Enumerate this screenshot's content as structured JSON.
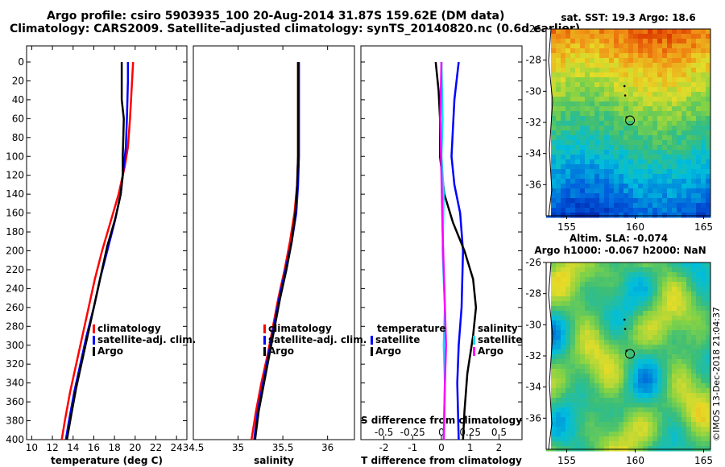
{
  "header": {
    "title_line1": "Argo profile: csiro 5903935_100 20-Aug-2014 31.87S 159.62E (DM data)",
    "title_line2": "Climatology: CARS2009. Satellite-adjusted climatology: synTS_20140820.nc (0.6d earlier)"
  },
  "footer": {
    "stamp": "©IMOS 13-Dec-2018 21:04:37"
  },
  "colors": {
    "climatology": "#ff0000",
    "satellite": "#0000ff",
    "argo": "#000000",
    "satellite_s": "#00e0ff",
    "argo_s": "#ff00ff"
  },
  "chart_data": [
    {
      "id": "temperature",
      "type": "line",
      "xlabel": "temperature (deg C)",
      "ylabel": "",
      "xlim": [
        9.5,
        25
      ],
      "ylim": [
        400,
        0
      ],
      "xticks": [
        10,
        12,
        14,
        16,
        18,
        20,
        22,
        24
      ],
      "yticks": [
        0,
        20,
        40,
        60,
        80,
        100,
        120,
        140,
        160,
        180,
        200,
        220,
        240,
        260,
        280,
        300,
        320,
        340,
        360,
        380,
        400
      ],
      "legend": [
        "climatology",
        "satellite-adj. clim.",
        "Argo"
      ],
      "legend_pos": "lower-right",
      "series": [
        {
          "name": "climatology",
          "color": "#ff0000",
          "points": [
            [
              19.8,
              0
            ],
            [
              19.7,
              20
            ],
            [
              19.5,
              60
            ],
            [
              19.3,
              90
            ],
            [
              19.0,
              110
            ],
            [
              18.4,
              140
            ],
            [
              17.6,
              170
            ],
            [
              16.8,
              200
            ],
            [
              16.1,
              230
            ],
            [
              15.5,
              260
            ],
            [
              14.9,
              290
            ],
            [
              14.3,
              320
            ],
            [
              13.7,
              350
            ],
            [
              13.2,
              380
            ],
            [
              12.9,
              400
            ]
          ]
        },
        {
          "name": "satellite-adj. clim.",
          "color": "#0000ff",
          "points": [
            [
              19.3,
              0
            ],
            [
              19.3,
              20
            ],
            [
              19.2,
              60
            ],
            [
              19.1,
              90
            ],
            [
              18.9,
              110
            ],
            [
              18.6,
              140
            ],
            [
              18.0,
              170
            ],
            [
              17.3,
              200
            ],
            [
              16.6,
              230
            ],
            [
              16.0,
              260
            ],
            [
              15.3,
              290
            ],
            [
              14.7,
              320
            ],
            [
              14.1,
              350
            ],
            [
              13.6,
              380
            ],
            [
              13.3,
              400
            ]
          ]
        },
        {
          "name": "Argo",
          "color": "#000000",
          "points": [
            [
              18.7,
              0
            ],
            [
              18.7,
              40
            ],
            [
              18.9,
              60
            ],
            [
              18.8,
              100
            ],
            [
              18.8,
              120
            ],
            [
              18.6,
              140
            ],
            [
              18.1,
              165
            ],
            [
              17.3,
              195
            ],
            [
              16.7,
              225
            ],
            [
              16.1,
              255
            ],
            [
              15.5,
              285
            ],
            [
              14.9,
              315
            ],
            [
              14.3,
              345
            ],
            [
              13.8,
              375
            ],
            [
              13.4,
              400
            ]
          ]
        }
      ]
    },
    {
      "id": "salinity",
      "type": "line",
      "xlabel": "salinity",
      "ylabel": "",
      "xlim": [
        34.5,
        36.3
      ],
      "ylim": [
        400,
        0
      ],
      "xticks": [
        34.5,
        35,
        35.5,
        36
      ],
      "xtick_labels": [
        "34.5",
        "35",
        "35.5",
        "36"
      ],
      "legend": [
        "climatology",
        "satellite-adj. clim.",
        "Argo"
      ],
      "legend_pos": "lower-right",
      "series": [
        {
          "name": "climatology",
          "color": "#ff0000",
          "points": [
            [
              35.67,
              0
            ],
            [
              35.67,
              60
            ],
            [
              35.67,
              100
            ],
            [
              35.66,
              130
            ],
            [
              35.63,
              160
            ],
            [
              35.58,
              190
            ],
            [
              35.52,
              220
            ],
            [
              35.45,
              250
            ],
            [
              35.39,
              280
            ],
            [
              35.33,
              310
            ],
            [
              35.26,
              340
            ],
            [
              35.2,
              370
            ],
            [
              35.15,
              400
            ]
          ]
        },
        {
          "name": "satellite-adj. clim.",
          "color": "#0000ff",
          "points": [
            [
              35.68,
              0
            ],
            [
              35.68,
              60
            ],
            [
              35.68,
              100
            ],
            [
              35.67,
              130
            ],
            [
              35.65,
              160
            ],
            [
              35.6,
              190
            ],
            [
              35.53,
              220
            ],
            [
              35.46,
              250
            ],
            [
              35.4,
              280
            ],
            [
              35.34,
              310
            ],
            [
              35.28,
              340
            ],
            [
              35.22,
              370
            ],
            [
              35.18,
              400
            ]
          ]
        },
        {
          "name": "Argo",
          "color": "#000000",
          "points": [
            [
              35.67,
              0
            ],
            [
              35.67,
              40
            ],
            [
              35.67,
              80
            ],
            [
              35.67,
              100
            ],
            [
              35.66,
              130
            ],
            [
              35.64,
              160
            ],
            [
              35.6,
              190
            ],
            [
              35.54,
              220
            ],
            [
              35.47,
              250
            ],
            [
              35.41,
              280
            ],
            [
              35.35,
              310
            ],
            [
              35.29,
              340
            ],
            [
              35.23,
              370
            ],
            [
              35.19,
              400
            ]
          ]
        }
      ]
    },
    {
      "id": "differences",
      "type": "line",
      "xlabel": "T difference from climatology",
      "x2label": "S difference from climatology",
      "xlim": [
        -2.8,
        2.8
      ],
      "ylim": [
        400,
        0
      ],
      "xticks": [
        -2,
        -1,
        0,
        1,
        2
      ],
      "xtick_labels": [
        "-2",
        "-1",
        "0",
        "1",
        "2"
      ],
      "x2ticks": [
        -0.5,
        -0.25,
        0,
        0.25,
        0.5
      ],
      "x2tick_labels": [
        "-0.5",
        "-0.25",
        "0",
        "0.25",
        "0.5"
      ],
      "x2lim": [
        -0.7,
        0.7
      ],
      "legend_left_title": "temperature",
      "legend_left": [
        "satellite",
        "Argo"
      ],
      "legend_right_title": "salinity",
      "legend_right": [
        "satellite",
        "Argo"
      ],
      "series": [
        {
          "name": "temperature satellite",
          "color": "#0000ff",
          "points": [
            [
              0.6,
              0
            ],
            [
              0.45,
              40
            ],
            [
              0.35,
              100
            ],
            [
              0.45,
              130
            ],
            [
              0.65,
              160
            ],
            [
              0.75,
              200
            ],
            [
              0.7,
              260
            ],
            [
              0.6,
              300
            ],
            [
              0.55,
              340
            ],
            [
              0.6,
              400
            ]
          ]
        },
        {
          "name": "temperature Argo",
          "color": "#000000",
          "points": [
            [
              -0.2,
              0
            ],
            [
              -0.1,
              30
            ],
            [
              -0.05,
              60
            ],
            [
              -0.05,
              100
            ],
            [
              0.1,
              140
            ],
            [
              0.4,
              170
            ],
            [
              0.8,
              200
            ],
            [
              1.1,
              230
            ],
            [
              1.2,
              260
            ],
            [
              1.1,
              290
            ],
            [
              0.9,
              330
            ],
            [
              0.8,
              370
            ],
            [
              0.75,
              400
            ]
          ]
        },
        {
          "name": "salinity satellite",
          "color": "#00e0ff",
          "points": [
            [
              0.0,
              0
            ],
            [
              0.01,
              60
            ],
            [
              0.0,
              100
            ],
            [
              0.02,
              140
            ],
            [
              0.01,
              200
            ],
            [
              0.03,
              260
            ],
            [
              0.02,
              300
            ],
            [
              0.03,
              340
            ],
            [
              0.02,
              400
            ]
          ]
        },
        {
          "name": "salinity Argo",
          "color": "#ff00ff",
          "points": [
            [
              0.0,
              0
            ],
            [
              -0.01,
              60
            ],
            [
              0.0,
              120
            ],
            [
              0.01,
              180
            ],
            [
              0.02,
              220
            ],
            [
              0.03,
              260
            ],
            [
              0.04,
              300
            ],
            [
              0.03,
              340
            ],
            [
              0.02,
              400
            ]
          ]
        }
      ]
    },
    {
      "id": "sst-map",
      "type": "heatmap",
      "title": "sat. SST: 19.3 Argo: 18.6",
      "xlim": [
        153.5,
        165.5
      ],
      "ylim": [
        -38,
        -26
      ],
      "xticks": [
        155,
        160,
        165
      ],
      "yticks": [
        -26,
        -28,
        -30,
        -32,
        -34,
        -36
      ],
      "argo_position": [
        159.62,
        -31.87
      ]
    },
    {
      "id": "sla-map",
      "type": "heatmap",
      "title": "Altim. SLA: -0.074",
      "subtitle": "Argo h1000: -0.067 h2000: NaN",
      "xlim": [
        153.5,
        165.5
      ],
      "ylim": [
        -38,
        -26
      ],
      "xticks": [
        155,
        160,
        165
      ],
      "yticks": [
        -26,
        -28,
        -30,
        -32,
        -34,
        -36
      ],
      "argo_position": [
        159.62,
        -31.87
      ]
    }
  ]
}
